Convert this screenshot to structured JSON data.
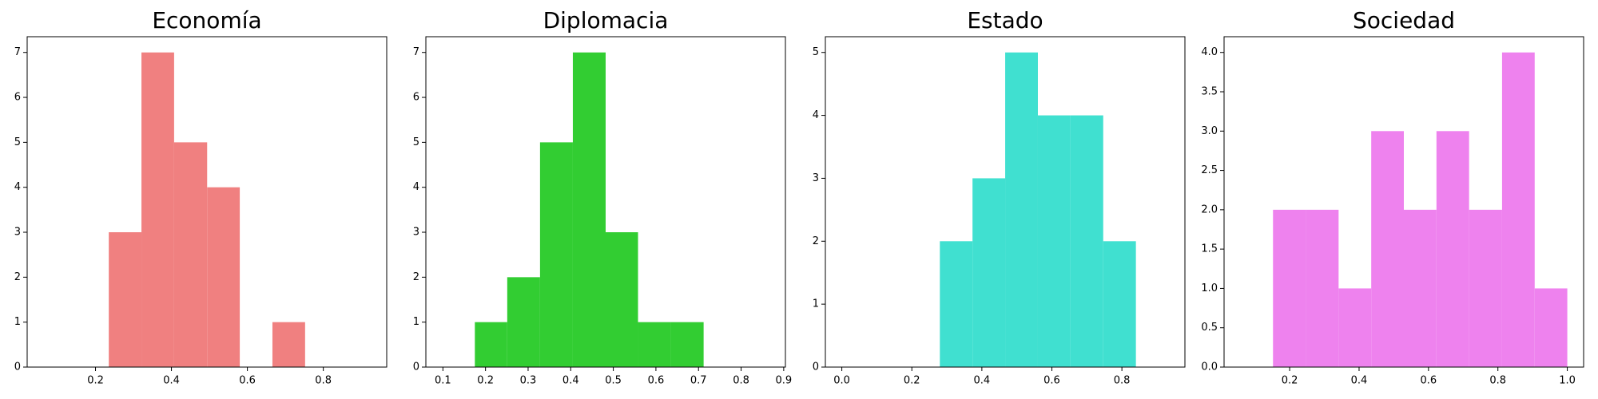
{
  "chart_data": [
    {
      "type": "histogram",
      "title": "Economía",
      "color": "#f08080",
      "bins": [
        0.063,
        0.149,
        0.235,
        0.321,
        0.407,
        0.494,
        0.58,
        0.666,
        0.752,
        0.838,
        0.924
      ],
      "values": [
        0,
        0,
        3,
        7,
        5,
        4,
        0,
        1,
        0,
        0
      ],
      "xlim": [
        0.02,
        0.967
      ],
      "ylim": [
        0,
        7.35
      ],
      "xticks": [
        0.2,
        0.4,
        0.6,
        0.8
      ],
      "yticks": [
        0,
        1,
        2,
        3,
        4,
        5,
        6,
        7
      ]
    },
    {
      "type": "histogram",
      "title": "Diplomacia",
      "color": "#32cd32",
      "bins": [
        0.098,
        0.175,
        0.251,
        0.328,
        0.405,
        0.482,
        0.558,
        0.635,
        0.712,
        0.789,
        0.866
      ],
      "values": [
        0,
        1,
        2,
        5,
        7,
        3,
        1,
        1,
        0,
        0
      ],
      "xlim": [
        0.06,
        0.904
      ],
      "ylim": [
        0,
        7.35
      ],
      "xticks": [
        0.1,
        0.2,
        0.3,
        0.4,
        0.5,
        0.6,
        0.7,
        0.8,
        0.9
      ],
      "yticks": [
        0,
        1,
        2,
        3,
        4,
        5,
        6,
        7
      ]
    },
    {
      "type": "histogram",
      "title": "Estado",
      "color": "#40e0d0",
      "bins": [
        0,
        0.0933,
        0.1866,
        0.28,
        0.3733,
        0.4666,
        0.56,
        0.6533,
        0.7466,
        0.84,
        0.933
      ],
      "values": [
        0,
        0,
        0,
        2,
        3,
        5,
        4,
        4,
        2,
        0
      ],
      "xlim": [
        -0.047,
        0.98
      ],
      "ylim": [
        0,
        5.25
      ],
      "xticks": [
        {
          "value": 0,
          "label": "0.0"
        },
        0.2,
        0.4,
        0.6,
        0.8
      ],
      "yticks": [
        0,
        1,
        2,
        3,
        4,
        5
      ]
    },
    {
      "type": "histogram",
      "title": "Sociedad",
      "color": "#ee82ee",
      "bins": [
        0.058,
        0.152,
        0.246,
        0.341,
        0.435,
        0.529,
        0.623,
        0.717,
        0.812,
        0.906,
        1.0
      ],
      "values": [
        0,
        2,
        2,
        1,
        3,
        2,
        3,
        2,
        4,
        1
      ],
      "xlim": [
        0.011,
        1.047
      ],
      "ylim": [
        0,
        4.2
      ],
      "xticks": [
        0.2,
        0.4,
        0.6,
        0.8,
        {
          "value": 1,
          "label": "1.0"
        }
      ],
      "yticks": [
        {
          "value": 0,
          "label": "0.0"
        },
        0.5,
        {
          "value": 1,
          "label": "1.0"
        },
        1.5,
        {
          "value": 2,
          "label": "2.0"
        },
        2.5,
        {
          "value": 3,
          "label": "3.0"
        },
        3.5,
        {
          "value": 4,
          "label": "4.0"
        }
      ]
    }
  ]
}
